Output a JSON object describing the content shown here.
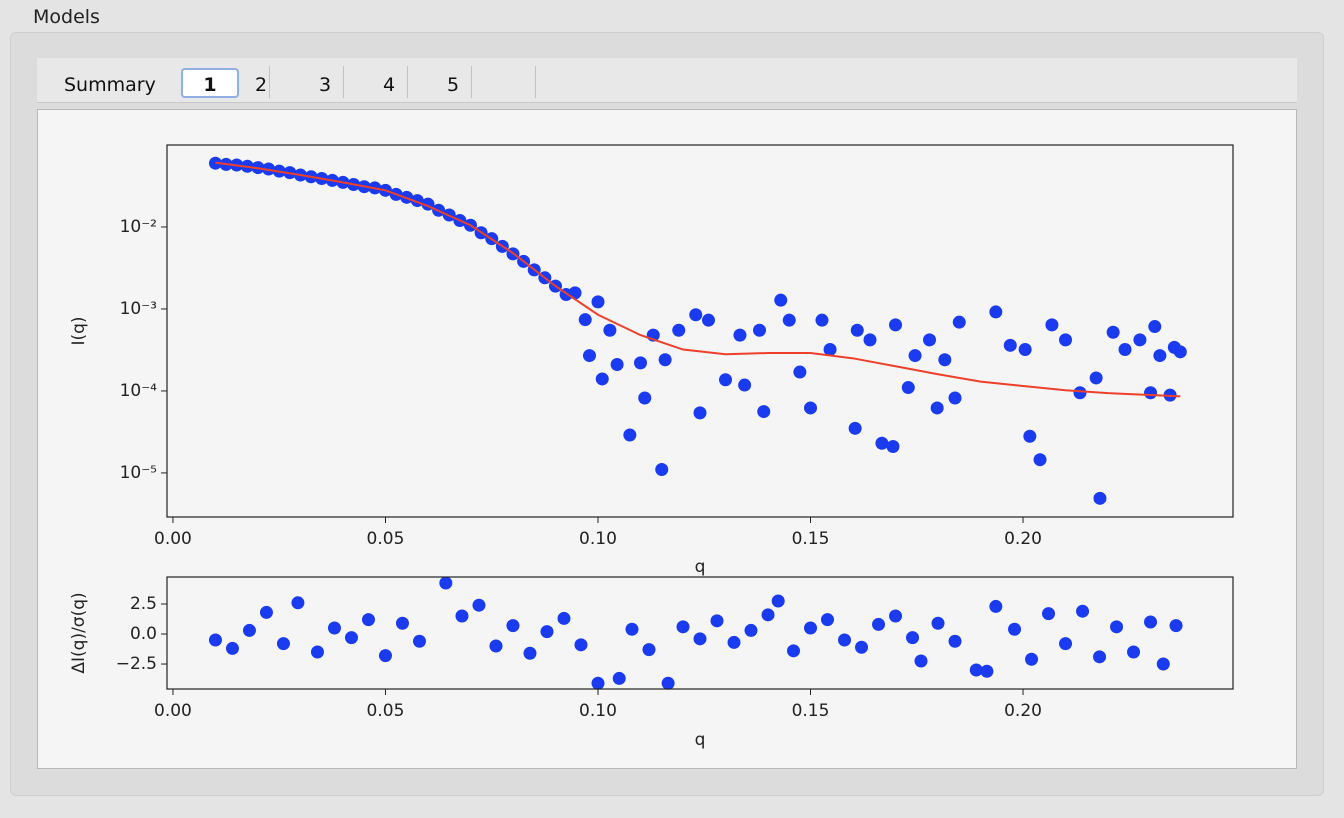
{
  "window": {
    "group_title": "Models",
    "tabs": [
      "Summary",
      "1",
      "2",
      "3",
      "4",
      "5"
    ],
    "selected_tab": 1
  },
  "chart_data": [
    {
      "type": "scatter",
      "xlabel": "q",
      "ylabel": "I(q)",
      "log_y": true,
      "xlim": [
        -0.0014,
        0.2494
      ],
      "ylim": [
        2.9e-06,
        0.1
      ],
      "xticks": [
        {
          "value": 0,
          "label": "0.00"
        },
        {
          "value": 0.05,
          "label": "0.05"
        },
        {
          "value": 0.1,
          "label": "0.10"
        },
        {
          "value": 0.15,
          "label": "0.15"
        },
        {
          "value": 0.2,
          "label": "0.20"
        }
      ],
      "yticks": [
        {
          "value": 0.01,
          "label": "10⁻²"
        },
        {
          "value": 0.001,
          "label": "10⁻³"
        },
        {
          "value": 0.0001,
          "label": "10⁻⁴"
        },
        {
          "value": 1e-05,
          "label": "10⁻⁵"
        }
      ],
      "series": [
        {
          "kind": "points",
          "color": "#1a3bf0",
          "x": [
            0.01,
            0.0125,
            0.015,
            0.0175,
            0.02,
            0.0225,
            0.025,
            0.0275,
            0.03,
            0.0325,
            0.035,
            0.0375,
            0.04,
            0.0425,
            0.045,
            0.0475,
            0.05,
            0.0525,
            0.055,
            0.0575,
            0.06,
            0.0625,
            0.065,
            0.0675,
            0.07,
            0.0725,
            0.075,
            0.0775,
            0.08,
            0.0825,
            0.085,
            0.0875,
            0.09,
            0.0925,
            0.0946,
            0.097,
            0.098,
            0.1,
            0.101,
            0.1028,
            0.1045,
            0.1075,
            0.11,
            0.111,
            0.113,
            0.115,
            0.1158,
            0.119,
            0.123,
            0.124,
            0.126,
            0.13,
            0.1334,
            0.1345,
            0.138,
            0.139,
            0.143,
            0.145,
            0.1475,
            0.15,
            0.1527,
            0.1546,
            0.1605,
            0.161,
            0.164,
            0.1668,
            0.1694,
            0.17,
            0.173,
            0.1746,
            0.178,
            0.1798,
            0.1816,
            0.184,
            0.185,
            0.1936,
            0.197,
            0.2005,
            0.2016,
            0.204,
            0.2068,
            0.21,
            0.2134,
            0.2172,
            0.2181,
            0.2212,
            0.224,
            0.2275,
            0.23,
            0.231,
            0.2322,
            0.2346,
            0.2356,
            0.237
          ],
          "values": [
            0.06,
            0.058,
            0.057,
            0.055,
            0.053,
            0.051,
            0.048,
            0.046,
            0.043,
            0.041,
            0.039,
            0.037,
            0.035,
            0.033,
            0.031,
            0.03,
            0.028,
            0.025,
            0.023,
            0.021,
            0.019,
            0.016,
            0.014,
            0.012,
            0.0105,
            0.0085,
            0.0072,
            0.0058,
            0.0047,
            0.0038,
            0.003,
            0.0024,
            0.0019,
            0.0015,
            0.00157,
            0.00074,
            0.00027,
            0.00122,
            0.00014,
            0.00055,
            0.00021,
            2.9e-05,
            0.00022,
            8.2e-05,
            0.00048,
            1.1e-05,
            0.00024,
            0.00055,
            0.00085,
            5.4e-05,
            0.00073,
            0.000137,
            0.00048,
            0.000118,
            0.00055,
            5.6e-05,
            0.00128,
            0.00073,
            0.00017,
            6.2e-05,
            0.00073,
            0.00032,
            3.5e-05,
            0.00055,
            0.00042,
            2.3e-05,
            2.1e-05,
            0.00064,
            0.00011,
            0.00027,
            0.00042,
            6.2e-05,
            0.00024,
            8.2e-05,
            0.00069,
            0.00092,
            0.00036,
            0.00032,
            2.8e-05,
            1.45e-05,
            0.00064,
            0.00042,
            9.5e-05,
            0.000144,
            4.9e-06,
            0.00052,
            0.00032,
            0.00042,
            9.5e-05,
            0.00061,
            0.00027,
            8.9e-05,
            0.00034,
            0.0003
          ]
        },
        {
          "kind": "line",
          "color": "#ee3f2b",
          "x": [
            0.01,
            0.02,
            0.03,
            0.04,
            0.05,
            0.06,
            0.07,
            0.08,
            0.09,
            0.1,
            0.11,
            0.12,
            0.13,
            0.14,
            0.15,
            0.16,
            0.17,
            0.18,
            0.19,
            0.2,
            0.21,
            0.22,
            0.237
          ],
          "values": [
            0.061,
            0.052,
            0.043,
            0.035,
            0.028,
            0.018,
            0.0105,
            0.0048,
            0.0019,
            0.00085,
            0.00048,
            0.00032,
            0.00028,
            0.00029,
            0.00029,
            0.00025,
            0.0002,
            0.00016,
            0.00013,
            0.000115,
            0.000102,
            9.4e-05,
            8.6e-05
          ]
        }
      ]
    },
    {
      "type": "scatter",
      "xlabel": "q",
      "ylabel": "ΔI(q)/σ(q)",
      "log_y": false,
      "xlim": [
        -0.0014,
        0.2494
      ],
      "ylim": [
        -4.58,
        4.75
      ],
      "xticks": [
        {
          "value": 0,
          "label": "0.00"
        },
        {
          "value": 0.05,
          "label": "0.05"
        },
        {
          "value": 0.1,
          "label": "0.10"
        },
        {
          "value": 0.15,
          "label": "0.15"
        },
        {
          "value": 0.2,
          "label": "0.20"
        }
      ],
      "yticks": [
        2.5,
        {
          "value": 0,
          "label": "0.0"
        },
        {
          "value": -2.5,
          "label": "−2.5"
        }
      ],
      "series": [
        {
          "kind": "points",
          "color": "#1a3bf0",
          "x": [
            0.01,
            0.014,
            0.018,
            0.022,
            0.026,
            0.0294,
            0.034,
            0.038,
            0.042,
            0.046,
            0.05,
            0.054,
            0.058,
            0.0642,
            0.068,
            0.072,
            0.076,
            0.08,
            0.084,
            0.088,
            0.092,
            0.096,
            0.1,
            0.105,
            0.108,
            0.112,
            0.1165,
            0.12,
            0.124,
            0.128,
            0.132,
            0.136,
            0.14,
            0.1424,
            0.146,
            0.15,
            0.154,
            0.158,
            0.162,
            0.166,
            0.17,
            0.174,
            0.176,
            0.18,
            0.184,
            0.189,
            0.1915,
            0.1936,
            0.198,
            0.202,
            0.206,
            0.21,
            0.214,
            0.218,
            0.222,
            0.226,
            0.23,
            0.233,
            0.236
          ],
          "values": [
            -0.5,
            -1.2,
            0.3,
            1.8,
            -0.8,
            2.6,
            -1.5,
            0.5,
            -0.3,
            1.2,
            -1.8,
            0.9,
            -0.6,
            4.25,
            1.5,
            2.4,
            -1.0,
            0.7,
            -1.6,
            0.2,
            1.3,
            -0.9,
            -4.1,
            -3.7,
            0.4,
            -1.3,
            -4.1,
            0.6,
            -0.4,
            1.1,
            -0.7,
            0.3,
            1.6,
            2.75,
            -1.4,
            0.5,
            1.2,
            -0.5,
            -1.1,
            0.8,
            1.5,
            -0.3,
            -2.25,
            0.9,
            -0.6,
            -3.0,
            -3.1,
            2.3,
            0.4,
            -2.1,
            1.7,
            -0.8,
            1.9,
            -1.9,
            0.6,
            -1.5,
            1.0,
            -2.5,
            0.7
          ]
        }
      ]
    }
  ]
}
